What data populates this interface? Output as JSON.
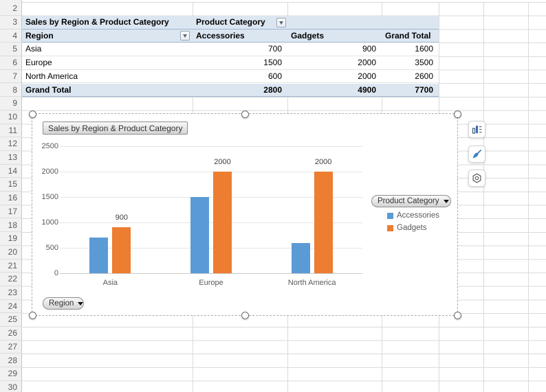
{
  "sheet": {
    "row_numbers": [
      "2",
      "3",
      "4",
      "5",
      "6",
      "7",
      "8",
      "9",
      "10",
      "11",
      "12",
      "13",
      "14",
      "15",
      "16",
      "17",
      "18",
      "19",
      "20",
      "21",
      "22",
      "23",
      "24",
      "25",
      "26",
      "27",
      "28",
      "29",
      "30"
    ]
  },
  "pivot_table": {
    "title": "Sales by Region & Product Category",
    "column_field_label": "Product Category",
    "row_field_label": "Region",
    "column_headers": [
      "Accessories",
      "Gadgets",
      "Grand Total"
    ],
    "rows": [
      {
        "label": "Asia",
        "values": [
          "700",
          "900",
          "1600"
        ]
      },
      {
        "label": "Europe",
        "values": [
          "1500",
          "2000",
          "3500"
        ]
      },
      {
        "label": "North America",
        "values": [
          "600",
          "2000",
          "2600"
        ]
      }
    ],
    "grand_total_row": {
      "label": "Grand Total",
      "values": [
        "2800",
        "4900",
        "7700"
      ]
    }
  },
  "chart_data": {
    "type": "bar",
    "title": "Sales by Region & Product Category",
    "categories": [
      "Asia",
      "Europe",
      "North America"
    ],
    "series": [
      {
        "name": "Accessories",
        "color": "#5B9BD5",
        "values": [
          700,
          1500,
          600
        ]
      },
      {
        "name": "Gadgets",
        "color": "#ED7D31",
        "values": [
          900,
          2000,
          2000
        ],
        "data_labels": [
          "900",
          "2000",
          "2000"
        ]
      }
    ],
    "ylim": [
      0,
      2500
    ],
    "yticks": [
      0,
      500,
      1000,
      1500,
      2000,
      2500
    ],
    "grid": true,
    "legend_position": "right",
    "legend_title": "Product Category",
    "axis_field_button": "Region"
  },
  "chart_toolbar": {
    "buttons": [
      "chart-elements",
      "chart-styles",
      "chart-filters"
    ]
  }
}
